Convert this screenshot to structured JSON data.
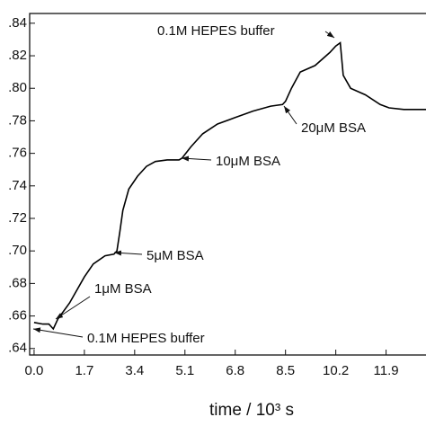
{
  "chart_data": {
    "type": "line",
    "xlabel": "time / 10³ s",
    "x": [
      0,
      0.3,
      0.5,
      0.65,
      0.8,
      1.2,
      1.7,
      2.0,
      2.4,
      2.7,
      2.8,
      2.9,
      3.0,
      3.2,
      3.5,
      3.8,
      4.1,
      4.5,
      4.9,
      5.0,
      5.3,
      5.7,
      6.2,
      6.8,
      7.4,
      8.0,
      8.4,
      8.5,
      8.7,
      9.0,
      9.5,
      10.0,
      10.2,
      10.35,
      10.45,
      10.7,
      11.2,
      11.7,
      12.0,
      12.5,
      13.3
    ],
    "series": [
      {
        "color": "#000000",
        "values": [
          0.656,
          0.655,
          0.655,
          0.652,
          0.658,
          0.668,
          0.684,
          0.692,
          0.697,
          0.698,
          0.7,
          0.712,
          0.725,
          0.738,
          0.746,
          0.752,
          0.755,
          0.756,
          0.756,
          0.757,
          0.764,
          0.772,
          0.778,
          0.782,
          0.786,
          0.789,
          0.79,
          0.792,
          0.8,
          0.81,
          0.814,
          0.822,
          0.826,
          0.828,
          0.808,
          0.8,
          0.796,
          0.79,
          0.788,
          0.787,
          0.787
        ]
      }
    ],
    "xlim": [
      -0.15,
      13.25
    ],
    "ylim": [
      0.636,
      0.846
    ],
    "xticks": [
      {
        "value": 0,
        "label": "0.0"
      },
      1.7,
      3.4,
      5.1,
      6.8,
      8.5,
      10.2,
      11.9
    ],
    "yticks": [
      {
        "value": 0.64,
        "label": ".64"
      },
      {
        "value": 0.66,
        "label": ".66"
      },
      {
        "value": 0.68,
        "label": ".68"
      },
      {
        "value": 0.7,
        "label": ".70"
      },
      {
        "value": 0.72,
        "label": ".72"
      },
      {
        "value": 0.74,
        "label": ".74"
      },
      {
        "value": 0.76,
        "label": ".76"
      },
      {
        "value": 0.78,
        "label": ".78"
      },
      {
        "value": 0.8,
        "label": ".80"
      },
      {
        "value": 0.82,
        "label": ".82"
      },
      {
        "value": 0.84,
        "label": ".84"
      }
    ],
    "annotations": [
      "0.1M HEPES buffer",
      "20μM BSA",
      "10μM BSA",
      "5μM BSA",
      "1μM BSA",
      "0.1M HEPES buffer"
    ]
  }
}
